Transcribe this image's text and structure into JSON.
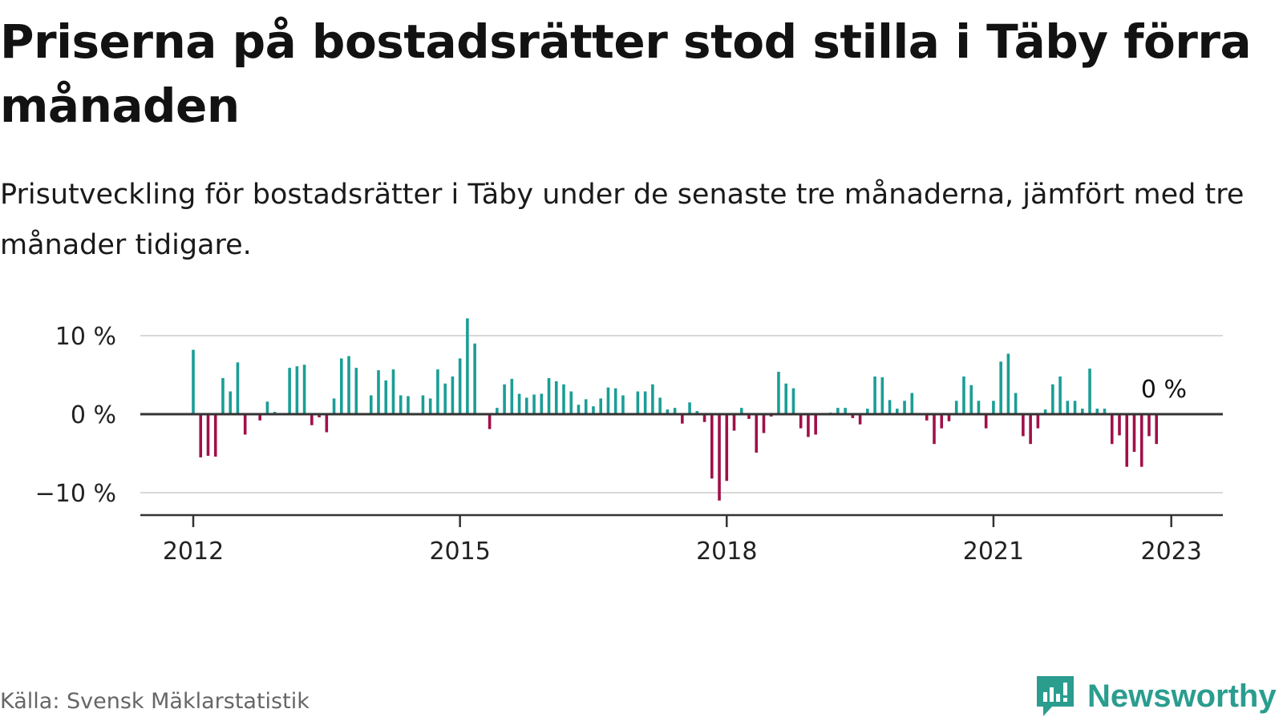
{
  "title": "Priserna på bostadsrätter stod stilla i Täby förra månaden",
  "subtitle": "Prisutveckling för bostadsrätter i Täby under de senaste tre månaderna, jämfört med tre månader tidigare.",
  "source": "Källa: Svensk Mäklarstatistik",
  "brand": {
    "name": "Newsworthy",
    "icon": "newsworthy-logo-icon"
  },
  "colors": {
    "positive": "#1a9e96",
    "negative": "#a0104a",
    "grid": "#d8d8d8",
    "axis": "#333333"
  },
  "chart_data": {
    "type": "bar",
    "x_start": "2012-01",
    "x_end": "2022-12",
    "y_unit": "%",
    "ylim": [
      -12,
      12
    ],
    "y_ticks": [
      {
        "value": 10,
        "label": "10 %"
      },
      {
        "value": 0,
        "label": "0 %"
      },
      {
        "value": -10,
        "label": "−10 %"
      }
    ],
    "x_ticks": [
      "2012",
      "2015",
      "2018",
      "2021",
      "2023"
    ],
    "grid": true,
    "annotation": "0 %",
    "values": [
      8.2,
      -5.5,
      -5.3,
      -5.4,
      4.6,
      2.9,
      6.6,
      -2.6,
      0,
      -0.8,
      1.6,
      0.3,
      0,
      5.9,
      6.1,
      6.3,
      -1.4,
      -0.4,
      -2.3,
      2.0,
      7.1,
      7.4,
      5.9,
      0,
      2.4,
      5.6,
      4.3,
      5.7,
      2.4,
      2.3,
      0,
      2.4,
      2.0,
      5.7,
      3.9,
      4.8,
      7.1,
      12.2,
      9.0,
      0,
      -1.9,
      0.8,
      3.8,
      4.5,
      2.6,
      2.1,
      2.5,
      2.6,
      4.6,
      4.2,
      3.8,
      2.9,
      1.2,
      1.9,
      1.0,
      2.0,
      3.4,
      3.3,
      2.4,
      0,
      2.9,
      2.9,
      3.8,
      2.1,
      0.6,
      0.8,
      -1.2,
      1.5,
      0.4,
      -1.0,
      -8.2,
      -11.0,
      -8.5,
      -2.1,
      0.8,
      -0.6,
      -4.9,
      -2.4,
      -0.3,
      5.4,
      3.9,
      3.3,
      -1.8,
      -2.9,
      -2.6,
      0,
      0.2,
      0.8,
      0.8,
      -0.5,
      -1.3,
      0.7,
      4.8,
      4.7,
      1.8,
      0.7,
      1.7,
      2.7,
      0,
      -0.8,
      -3.8,
      -1.8,
      -0.9,
      1.7,
      4.8,
      3.7,
      1.7,
      -1.8,
      1.7,
      6.7,
      7.7,
      2.7,
      -2.8,
      -3.8,
      -1.8,
      0.6,
      3.8,
      4.8,
      1.7,
      1.7,
      0.7,
      5.8,
      0.7,
      0.7,
      -3.8,
      -2.7,
      -6.7,
      -4.8,
      -6.7,
      -2.8,
      -3.8,
      0
    ]
  }
}
